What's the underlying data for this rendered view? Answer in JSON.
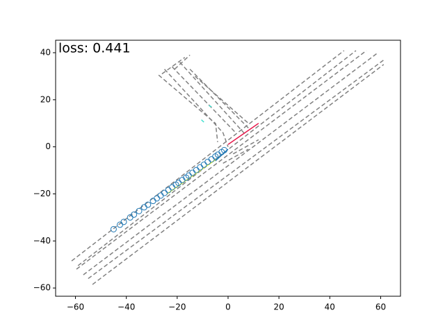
{
  "chart_data": {
    "type": "scatter",
    "annotation": "loss: 0.441",
    "xlim": [
      -67.8,
      67.8
    ],
    "ylim": [
      -63.5,
      45.3
    ],
    "xticks": [
      {
        "value": -60,
        "label": "−60"
      },
      {
        "value": -40,
        "label": "−40"
      },
      {
        "value": -20,
        "label": "−20"
      },
      0,
      20,
      40,
      60
    ],
    "yticks": [
      {
        "value": -60,
        "label": "−60"
      },
      {
        "value": -40,
        "label": "−40"
      },
      {
        "value": -20,
        "label": "−20"
      },
      0,
      20,
      40
    ],
    "lane_color": "#808080",
    "lanes": [
      {
        "x": [
          -61.5,
          45.6
        ],
        "y": [
          -48.5,
          40.9
        ]
      },
      {
        "x": [
          -59,
          50.3
        ],
        "y": [
          -50.5,
          40.9
        ]
      },
      {
        "x": [
          -59.6,
          54.4
        ],
        "y": [
          -52,
          40.9
        ]
      },
      {
        "x": [
          -56.9,
          58.8
        ],
        "y": [
          -54.4,
          39.9
        ]
      },
      {
        "x": [
          -55,
          61.2
        ],
        "y": [
          -56,
          36.9
        ]
      },
      {
        "x": [
          -53.3,
          61.2
        ],
        "y": [
          -58.5,
          35
        ]
      },
      {
        "x": [
          -27.3,
          -4.9,
          -4.1
        ],
        "y": [
          30.5,
          9.9,
          2
        ]
      },
      {
        "x": [
          -25,
          -2,
          0
        ],
        "y": [
          33,
          6,
          0
        ]
      },
      {
        "x": [
          -22,
          3
        ],
        "y": [
          34,
          6
        ]
      },
      {
        "x": [
          -19,
          7
        ],
        "y": [
          36,
          5
        ]
      },
      {
        "x": [
          -15,
          8
        ],
        "y": [
          33,
          8
        ]
      },
      {
        "x": [
          -13,
          8
        ],
        "y": [
          30,
          10
        ]
      },
      {
        "x": [
          -26,
          -17
        ],
        "y": [
          31,
          38
        ]
      },
      {
        "x": [
          -21,
          -15
        ],
        "y": [
          33,
          39
        ]
      },
      {
        "x": [
          -2,
          8
        ],
        "y": [
          -7,
          -1
        ]
      },
      {
        "x": [
          2,
          12
        ],
        "y": [
          -3,
          3
        ]
      }
    ],
    "tracks": [
      {
        "color": "#ffff33",
        "x": [
          -24,
          -3
        ],
        "y": [
          -20,
          -4
        ]
      },
      {
        "color": "#1f77b4",
        "x": [
          -5,
          0
        ],
        "y": [
          -6,
          -1
        ]
      },
      {
        "color": "#e6194b",
        "x": [
          0,
          12
        ],
        "y": [
          1,
          10
        ]
      },
      {
        "color": "#40e0d0",
        "x": [
          -10.5,
          -9.5
        ],
        "y": [
          11.5,
          10.5
        ]
      },
      {
        "color": "#40e0d0",
        "x": [
          -7.5,
          -6.5
        ],
        "y": [
          17.5,
          17
        ]
      }
    ],
    "points": {
      "color": "#1f77b4",
      "x": [
        -45,
        -42.5,
        -41,
        -38.5,
        -37,
        -35,
        -33,
        -31.5,
        -29.5,
        -28,
        -26.5,
        -25,
        -23.5,
        -22,
        -20.5,
        -19.5,
        -18,
        -16.5,
        -15.5,
        -14,
        -12.5,
        -11,
        -9.5,
        -8,
        -6.5,
        -5,
        -4,
        -2.5,
        -1.5
      ],
      "y": [
        -35.0,
        -33.1,
        -31.9,
        -30.0,
        -28.8,
        -27.3,
        -25.7,
        -24.6,
        -23.0,
        -21.9,
        -20.7,
        -19.6,
        -18.4,
        -17.2,
        -16.1,
        -15.3,
        -14.1,
        -13.1,
        -12.2,
        -11.0,
        -9.9,
        -8.7,
        -7.6,
        -6.4,
        -5.3,
        -4.1,
        -3.3,
        -2.2,
        -1.4
      ]
    }
  }
}
